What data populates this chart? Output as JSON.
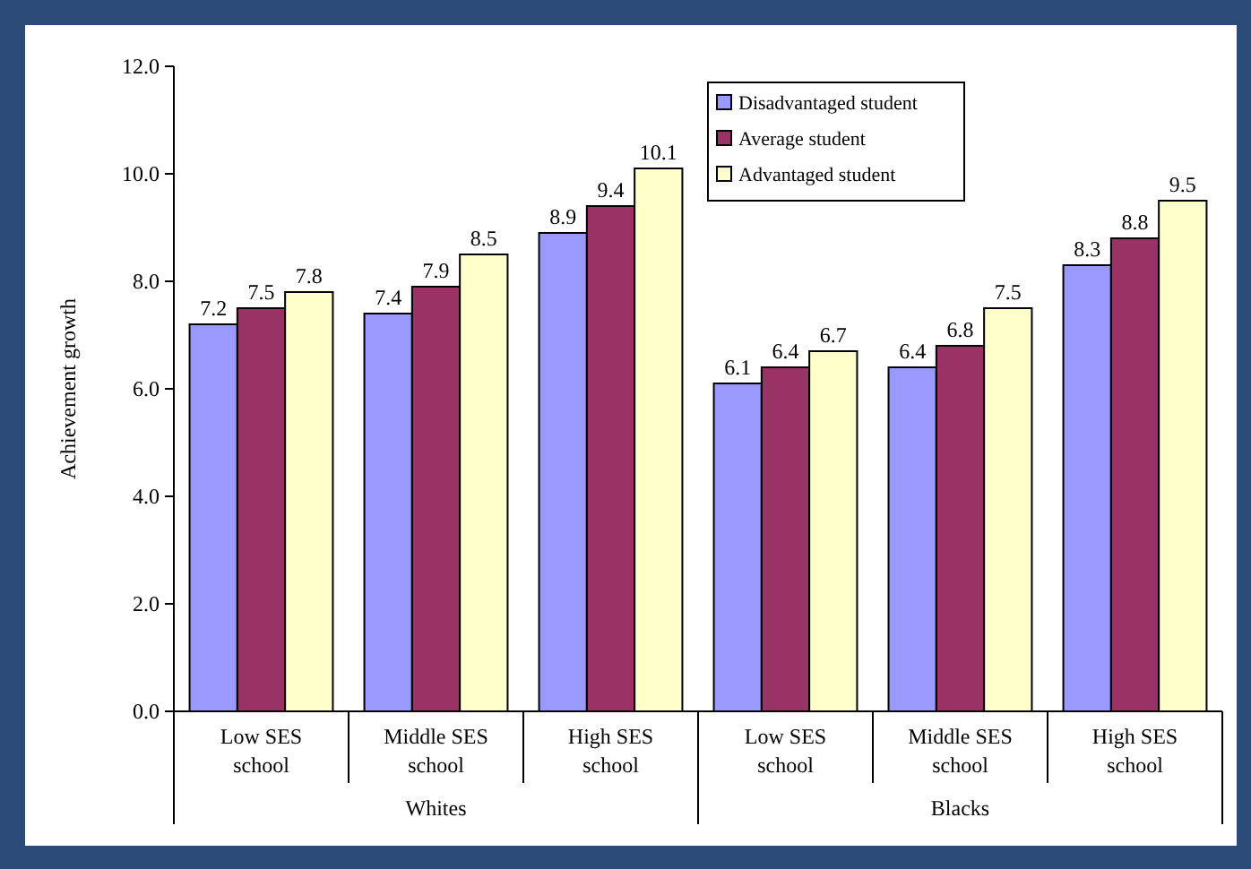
{
  "chart_data": {
    "type": "bar",
    "ylabel": "Achievement growth",
    "categories": [
      "Low SES school",
      "Middle SES school",
      "High SES school",
      "Low SES school",
      "Middle SES school",
      "High SES school"
    ],
    "series": [
      {
        "name": "Disadvantaged student",
        "color": "#9999ff",
        "values": [
          7.2,
          7.4,
          8.9,
          6.1,
          6.4,
          8.3
        ]
      },
      {
        "name": "Average student",
        "color": "#993366",
        "values": [
          7.5,
          7.9,
          9.4,
          6.4,
          6.8,
          8.8
        ]
      },
      {
        "name": "Advantaged student",
        "color": "#ffffcc",
        "values": [
          7.8,
          8.5,
          10.1,
          6.7,
          7.5,
          9.5
        ]
      }
    ],
    "ylim": [
      0,
      12
    ],
    "yticks": [
      {
        "value": 0,
        "label": "0.0"
      },
      {
        "value": 2,
        "label": "2.0"
      },
      {
        "value": 4,
        "label": "4.0"
      },
      {
        "value": 6,
        "label": "6.0"
      },
      {
        "value": 8,
        "label": "8.0"
      },
      {
        "value": 10,
        "label": "10.0"
      },
      {
        "value": 12,
        "label": "12.0"
      }
    ],
    "annotations": [
      "Whites",
      "Blacks"
    ],
    "data_labels": true,
    "legend": "top right",
    "grid": false
  }
}
